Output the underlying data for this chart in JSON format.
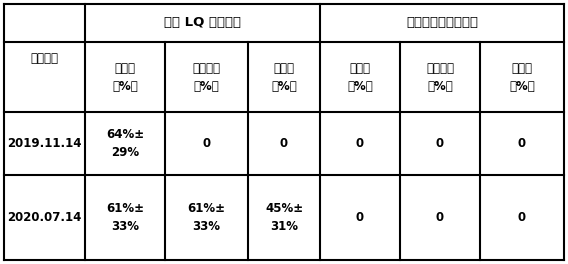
{
  "title_group1": "接种 LQ 菌株处理",
  "title_group2": "空白（不接菌）对照",
  "col_header_0": "统计时间",
  "col_header_sub": [
    "萌发率\n（%）",
    "原球茎率\n（%）",
    "幼苗率\n（%）",
    "萌发率\n（%）",
    "原球茎率\n（%）",
    "幼苗率\n（%）"
  ],
  "data_rows": [
    [
      "2019.11.14",
      "64%±\n29%",
      "0",
      "0",
      "0",
      "0",
      "0"
    ],
    [
      "2020.07.14",
      "61%±\n33%",
      "61%±\n33%",
      "45%±\n31%",
      "0",
      "0",
      "0"
    ]
  ],
  "bg_color": "#ffffff",
  "border_color": "#000000",
  "font_size": 8.5
}
